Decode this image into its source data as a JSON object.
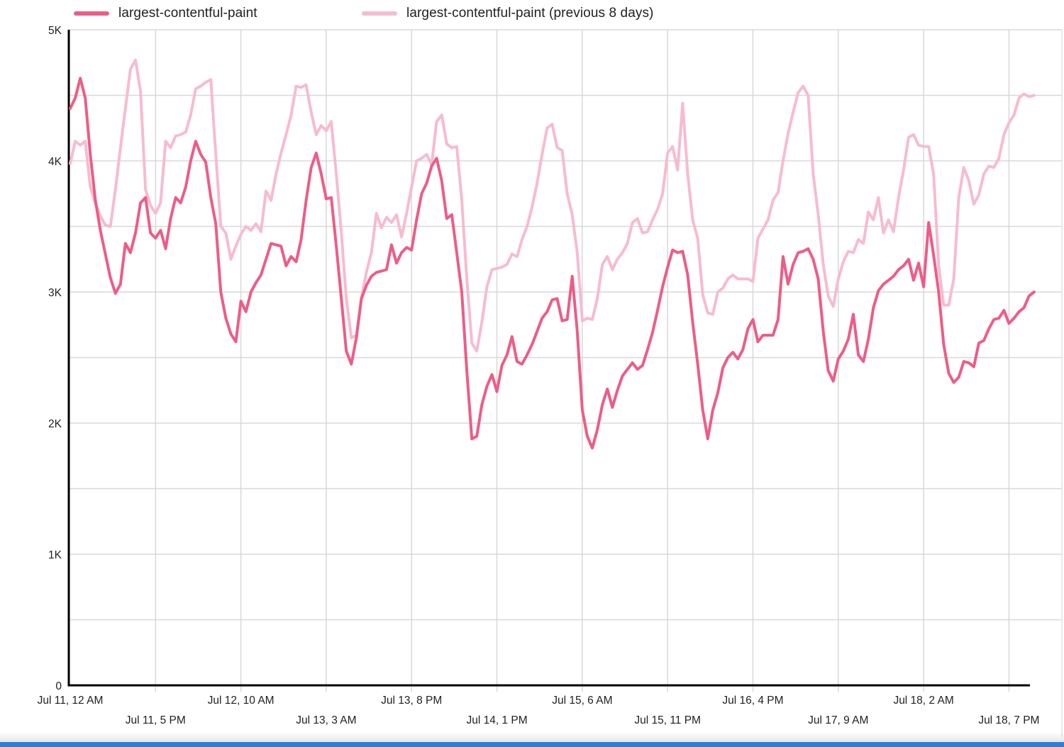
{
  "legend": {
    "items": [
      {
        "label": "largest-contentful-paint",
        "color": "#ED5C87"
      },
      {
        "label": "largest-contentful-paint (previous 8 days)",
        "color": "#F7BBD0"
      }
    ]
  },
  "footer": {
    "bar_color": "#2B7FD9"
  },
  "chart_data": {
    "type": "line",
    "title": "",
    "xlabel": "",
    "ylabel": "",
    "x_unit": "hours since Jul 11, 12 AM",
    "x_total_hours": 192,
    "ylim": [
      0,
      5000
    ],
    "y_ticks": [
      0,
      1000,
      2000,
      3000,
      4000,
      5000
    ],
    "y_tick_labels": [
      "0",
      "1K",
      "2K",
      "3K",
      "4K",
      "5K"
    ],
    "y_minor_grid_step": 500,
    "grid": true,
    "legend_position": "top-left",
    "x_ticks": [
      {
        "hour": 0,
        "label": "Jul 11, 12 AM",
        "row": 1
      },
      {
        "hour": 17,
        "label": "Jul 11, 5 PM",
        "row": 2
      },
      {
        "hour": 34,
        "label": "Jul 12, 10 AM",
        "row": 1
      },
      {
        "hour": 51,
        "label": "Jul 13, 3 AM",
        "row": 2
      },
      {
        "hour": 68,
        "label": "Jul 13, 8 PM",
        "row": 1
      },
      {
        "hour": 85,
        "label": "Jul 14, 1 PM",
        "row": 2
      },
      {
        "hour": 102,
        "label": "Jul 15, 6 AM",
        "row": 1
      },
      {
        "hour": 119,
        "label": "Jul 15, 11 PM",
        "row": 2
      },
      {
        "hour": 136,
        "label": "Jul 16, 4 PM",
        "row": 1
      },
      {
        "hour": 153,
        "label": "Jul 17, 9 AM",
        "row": 2
      },
      {
        "hour": 170,
        "label": "Jul 18, 2 AM",
        "row": 1
      },
      {
        "hour": 187,
        "label": "Jul 18, 7 PM",
        "row": 2
      }
    ],
    "series": [
      {
        "name": "largest-contentful-paint",
        "color": "#ED5C87",
        "stroke_width": 4,
        "values": [
          4400,
          4480,
          4630,
          4480,
          4050,
          3700,
          3470,
          3290,
          3110,
          2990,
          3060,
          3370,
          3300,
          3450,
          3680,
          3720,
          3450,
          3410,
          3470,
          3330,
          3560,
          3720,
          3680,
          3800,
          4000,
          4150,
          4050,
          3990,
          3720,
          3520,
          3000,
          2800,
          2680,
          2620,
          2930,
          2850,
          3000,
          3070,
          3130,
          3250,
          3370,
          3360,
          3350,
          3200,
          3270,
          3230,
          3400,
          3700,
          3950,
          4060,
          3900,
          3710,
          3720,
          3350,
          2950,
          2550,
          2450,
          2650,
          2950,
          3050,
          3120,
          3150,
          3160,
          3170,
          3360,
          3220,
          3300,
          3340,
          3320,
          3550,
          3750,
          3830,
          3960,
          4020,
          3850,
          3560,
          3590,
          3300,
          3000,
          2400,
          1880,
          1900,
          2140,
          2280,
          2370,
          2240,
          2440,
          2520,
          2660,
          2470,
          2450,
          2520,
          2600,
          2700,
          2800,
          2850,
          2940,
          2950,
          2780,
          2790,
          3120,
          2700,
          2100,
          1900,
          1810,
          1950,
          2140,
          2260,
          2120,
          2250,
          2360,
          2410,
          2460,
          2410,
          2440,
          2560,
          2690,
          2860,
          3040,
          3190,
          3320,
          3300,
          3310,
          3130,
          2770,
          2450,
          2100,
          1880,
          2100,
          2230,
          2420,
          2500,
          2540,
          2490,
          2560,
          2720,
          2790,
          2620,
          2670,
          2670,
          2670,
          2790,
          3270,
          3060,
          3210,
          3300,
          3310,
          3330,
          3250,
          3100,
          2700,
          2400,
          2320,
          2490,
          2550,
          2640,
          2830,
          2520,
          2470,
          2640,
          2880,
          3010,
          3060,
          3090,
          3120,
          3170,
          3200,
          3250,
          3090,
          3220,
          3040,
          3530,
          3280,
          3000,
          2600,
          2380,
          2310,
          2350,
          2470,
          2460,
          2430,
          2610,
          2630,
          2720,
          2790,
          2800,
          2860,
          2760,
          2800,
          2850,
          2880,
          2970,
          3000
        ]
      },
      {
        "name": "largest-contentful-paint (previous 8 days)",
        "color": "#F7BBD0",
        "stroke_width": 4,
        "values": [
          3980,
          4150,
          4120,
          4150,
          3800,
          3680,
          3580,
          3510,
          3500,
          3780,
          4100,
          4400,
          4700,
          4770,
          4530,
          3780,
          3660,
          3600,
          3680,
          4150,
          4100,
          4190,
          4200,
          4220,
          4350,
          4550,
          4570,
          4600,
          4620,
          4050,
          3500,
          3450,
          3250,
          3350,
          3440,
          3500,
          3470,
          3520,
          3460,
          3770,
          3700,
          3900,
          4060,
          4200,
          4350,
          4570,
          4560,
          4580,
          4370,
          4200,
          4270,
          4230,
          4300,
          3900,
          3450,
          2950,
          2650,
          2670,
          2950,
          3150,
          3300,
          3600,
          3490,
          3570,
          3530,
          3590,
          3420,
          3600,
          3800,
          4000,
          4020,
          4050,
          3970,
          4300,
          4350,
          4130,
          4100,
          4110,
          3700,
          3100,
          2610,
          2550,
          2770,
          3040,
          3170,
          3180,
          3190,
          3210,
          3290,
          3270,
          3400,
          3500,
          3650,
          3830,
          4050,
          4250,
          4280,
          4100,
          4080,
          3750,
          3590,
          3300,
          2780,
          2800,
          2790,
          2950,
          3210,
          3270,
          3170,
          3250,
          3300,
          3370,
          3530,
          3560,
          3450,
          3460,
          3550,
          3630,
          3750,
          4060,
          4110,
          3930,
          4440,
          3900,
          3550,
          3410,
          2980,
          2840,
          2830,
          3000,
          3030,
          3100,
          3130,
          3100,
          3100,
          3100,
          3080,
          3410,
          3480,
          3550,
          3700,
          3760,
          4000,
          4210,
          4370,
          4520,
          4570,
          4500,
          3900,
          3590,
          3210,
          2970,
          2890,
          3100,
          3230,
          3310,
          3300,
          3400,
          3370,
          3610,
          3550,
          3720,
          3450,
          3550,
          3460,
          3720,
          3930,
          4180,
          4200,
          4120,
          4110,
          4110,
          3900,
          3200,
          2900,
          2900,
          3100,
          3720,
          3950,
          3850,
          3670,
          3740,
          3900,
          3960,
          3950,
          4020,
          4200,
          4290,
          4350,
          4480,
          4510,
          4490,
          4500
        ]
      }
    ],
    "style": {
      "grid_color": "#d8d8d8",
      "axis_color": "#000000",
      "text_color": "#202124",
      "right_border_color": "#e3e3e3"
    }
  }
}
